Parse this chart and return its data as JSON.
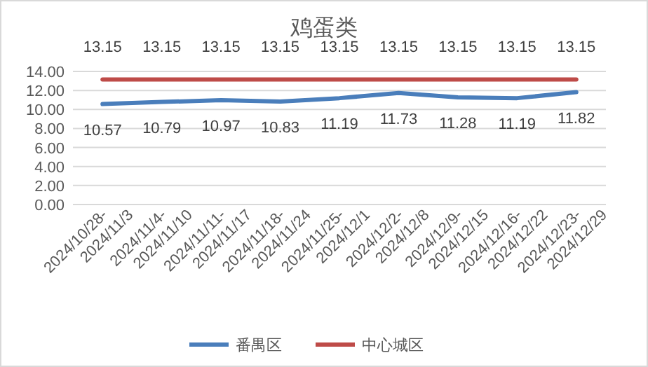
{
  "chart_data": {
    "type": "line",
    "title": "鸡蛋类",
    "categories": [
      "2024/10/28-\n2024/11/3",
      "2024/11/4-\n2024/11/10",
      "2024/11/11-\n2024/11/17",
      "2024/11/18-\n2024/11/24",
      "2024/11/25-\n2024/12/1",
      "2024/12/2-\n2024/12/8",
      "2024/12/9-\n2024/12/15",
      "2024/12/16-\n2024/12/22",
      "2024/12/23-\n2024/12/29"
    ],
    "series": [
      {
        "name": "番禺区",
        "color": "#4a7ebb",
        "values": [
          10.57,
          10.79,
          10.97,
          10.83,
          11.19,
          11.73,
          11.28,
          11.19,
          11.82
        ]
      },
      {
        "name": "中心城区",
        "color": "#be4b48",
        "values": [
          13.15,
          13.15,
          13.15,
          13.15,
          13.15,
          13.15,
          13.15,
          13.15,
          13.15
        ]
      }
    ],
    "ylim": [
      0,
      14
    ],
    "yticks": [
      {
        "value": 0,
        "label": "0.00"
      },
      {
        "value": 2,
        "label": "2.00"
      },
      {
        "value": 4,
        "label": "4.00"
      },
      {
        "value": 6,
        "label": "6.00"
      },
      {
        "value": 8,
        "label": "8.00"
      },
      {
        "value": 10,
        "label": "10.00"
      },
      {
        "value": 12,
        "label": "12.00"
      },
      {
        "value": 14,
        "label": "14.00"
      }
    ],
    "grid": "y",
    "legend": "bottom",
    "data_labels": true,
    "marker": "none",
    "line_style": "solid"
  }
}
